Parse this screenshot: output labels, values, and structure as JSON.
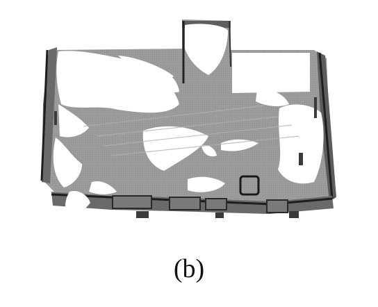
{
  "figure": {
    "caption": "(b)",
    "floor_color": "#9a9a9a",
    "wall_color": "#6e6e6e",
    "edge_color": "#1e1e1e",
    "unexplored_color": "#ffffff"
  }
}
